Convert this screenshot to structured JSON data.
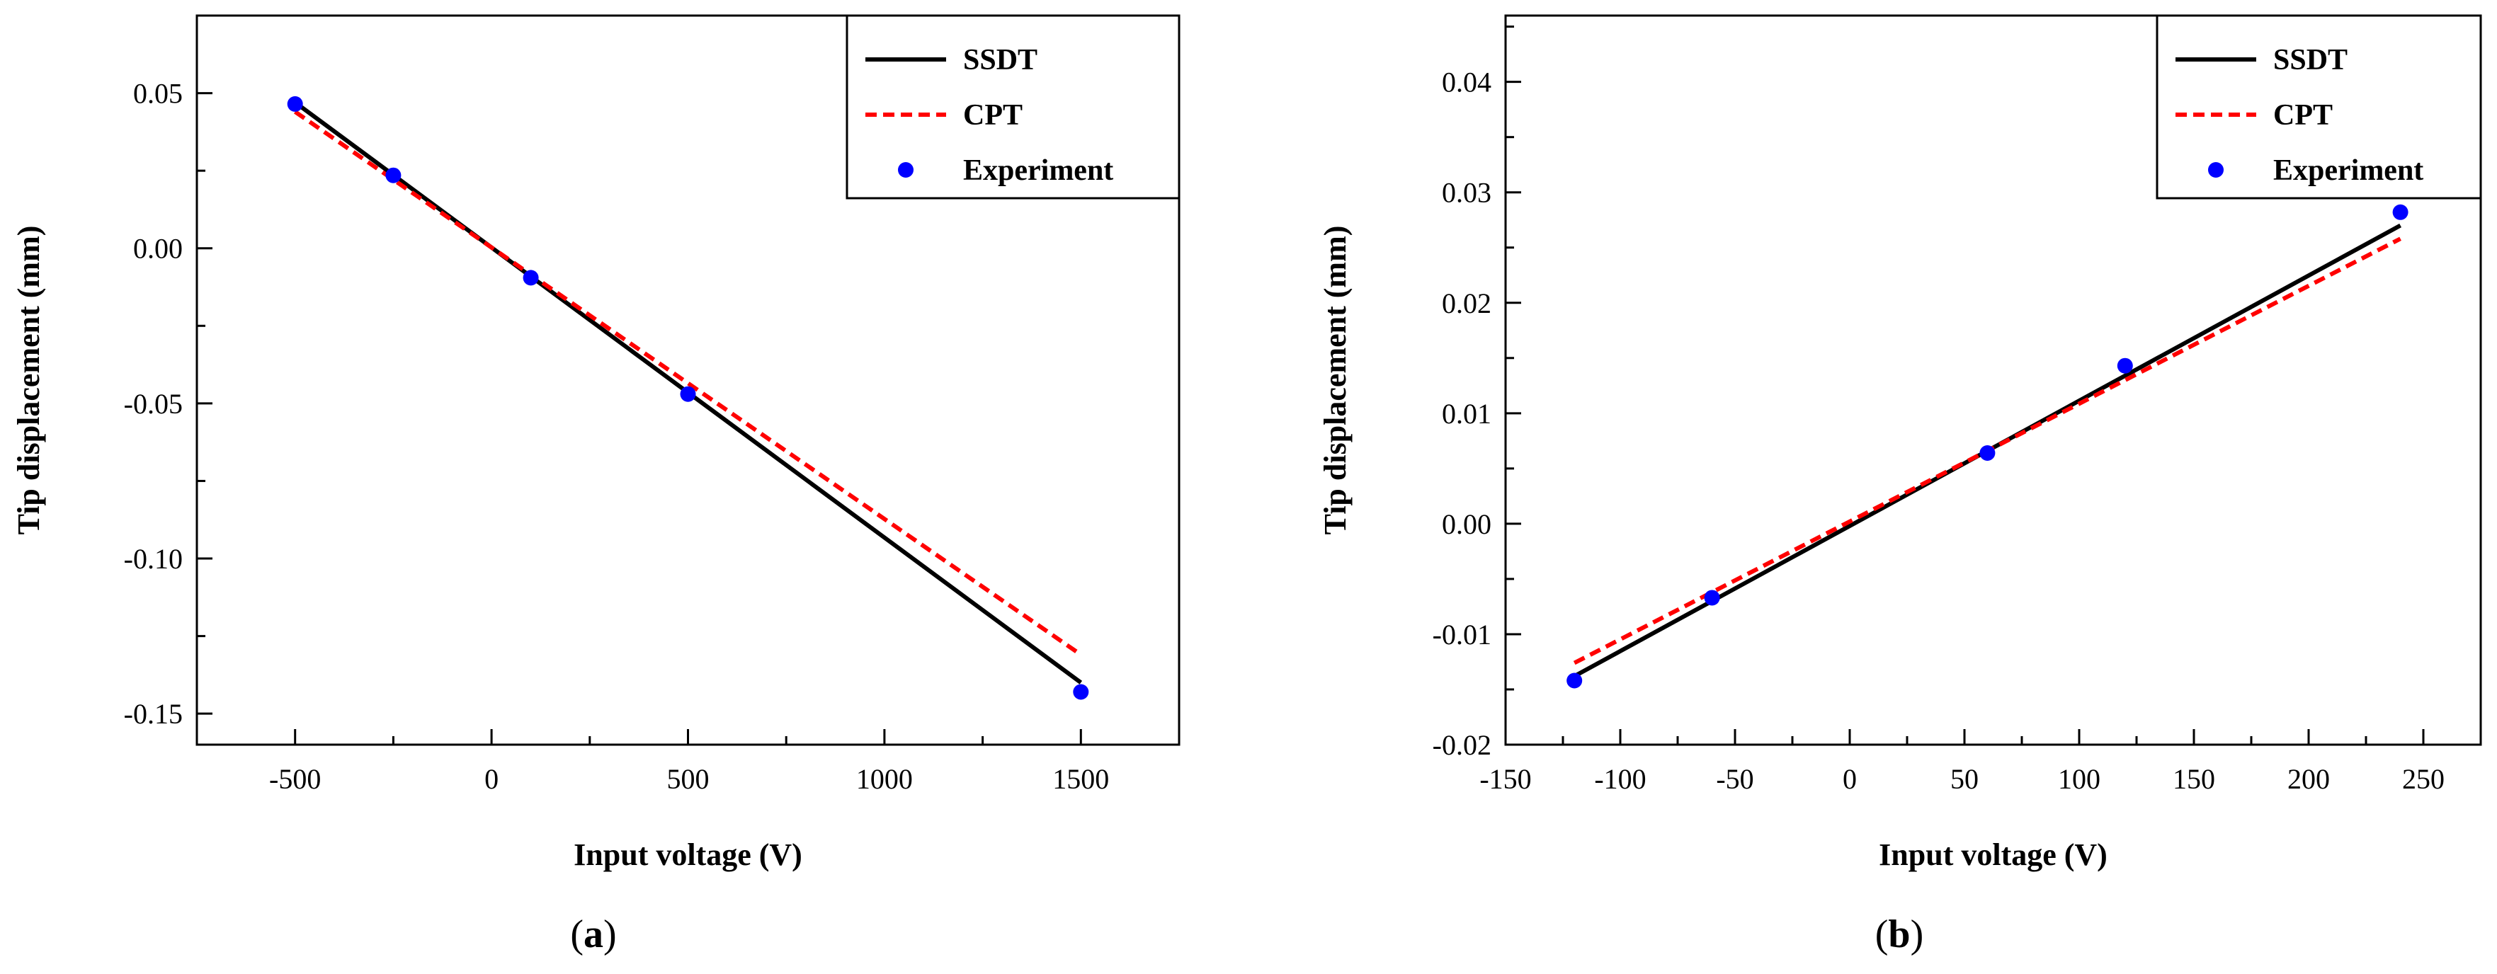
{
  "chart_data": [
    {
      "type": "line",
      "panel_letter": "a",
      "xlabel": "Input voltage (V)",
      "ylabel": "Tip displacement (mm)",
      "xlim": [
        -750,
        1750
      ],
      "ylim": [
        -0.16,
        0.075
      ],
      "xticks": [
        -500,
        0,
        500,
        1000,
        1500
      ],
      "xtick_labels": [
        "-500",
        "0",
        "500",
        "1000",
        "1500"
      ],
      "yticks": [
        0.05,
        0.0,
        -0.05,
        -0.1,
        -0.15
      ],
      "ytick_labels": [
        "0.05",
        "0.00",
        "-0.05",
        "-0.10",
        "-0.15"
      ],
      "legend": {
        "position": "top-right",
        "entries": [
          "SSDT",
          "CPT",
          "Experiment"
        ]
      },
      "series": [
        {
          "name": "SSDT",
          "style": "solid",
          "color": "#000000",
          "x": [
            -500,
            1500
          ],
          "y": [
            0.047,
            -0.14
          ]
        },
        {
          "name": "CPT",
          "style": "dashed",
          "color": "#ff0000",
          "x": [
            -500,
            1500
          ],
          "y": [
            0.044,
            -0.131
          ]
        },
        {
          "name": "Experiment",
          "style": "markers",
          "color": "#0000ff",
          "x": [
            -500,
            -250,
            100,
            500,
            1500
          ],
          "y": [
            0.0465,
            0.0235,
            -0.0095,
            -0.047,
            -0.143
          ]
        }
      ]
    },
    {
      "type": "line",
      "panel_letter": "b",
      "xlabel": "Input voltage (V)",
      "ylabel": "Tip displacement (mm)",
      "xlim": [
        -150,
        275
      ],
      "ylim": [
        -0.02,
        0.046
      ],
      "xticks": [
        -150,
        -100,
        -50,
        0,
        50,
        100,
        150,
        200,
        250
      ],
      "xtick_labels": [
        "-150",
        "-100",
        "-50",
        "0",
        "50",
        "100",
        "150",
        "200",
        "250"
      ],
      "yticks": [
        -0.02,
        -0.01,
        0.0,
        0.01,
        0.02,
        0.03,
        0.04
      ],
      "ytick_labels": [
        "-0.02",
        "-0.01",
        "0.00",
        "0.01",
        "0.02",
        "0.03",
        "0.04"
      ],
      "legend": {
        "position": "top-right",
        "entries": [
          "SSDT",
          "CPT",
          "Experiment"
        ]
      },
      "series": [
        {
          "name": "SSDT",
          "style": "solid",
          "color": "#000000",
          "x": [
            -120,
            240
          ],
          "y": [
            -0.0138,
            0.027
          ]
        },
        {
          "name": "CPT",
          "style": "dashed",
          "color": "#ff0000",
          "x": [
            -120,
            240
          ],
          "y": [
            -0.0126,
            0.0258
          ]
        },
        {
          "name": "Experiment",
          "style": "markers",
          "color": "#0000ff",
          "x": [
            -120,
            -60,
            60,
            120,
            240
          ],
          "y": [
            -0.0142,
            -0.0067,
            0.0064,
            0.0143,
            0.0282
          ]
        }
      ]
    }
  ]
}
